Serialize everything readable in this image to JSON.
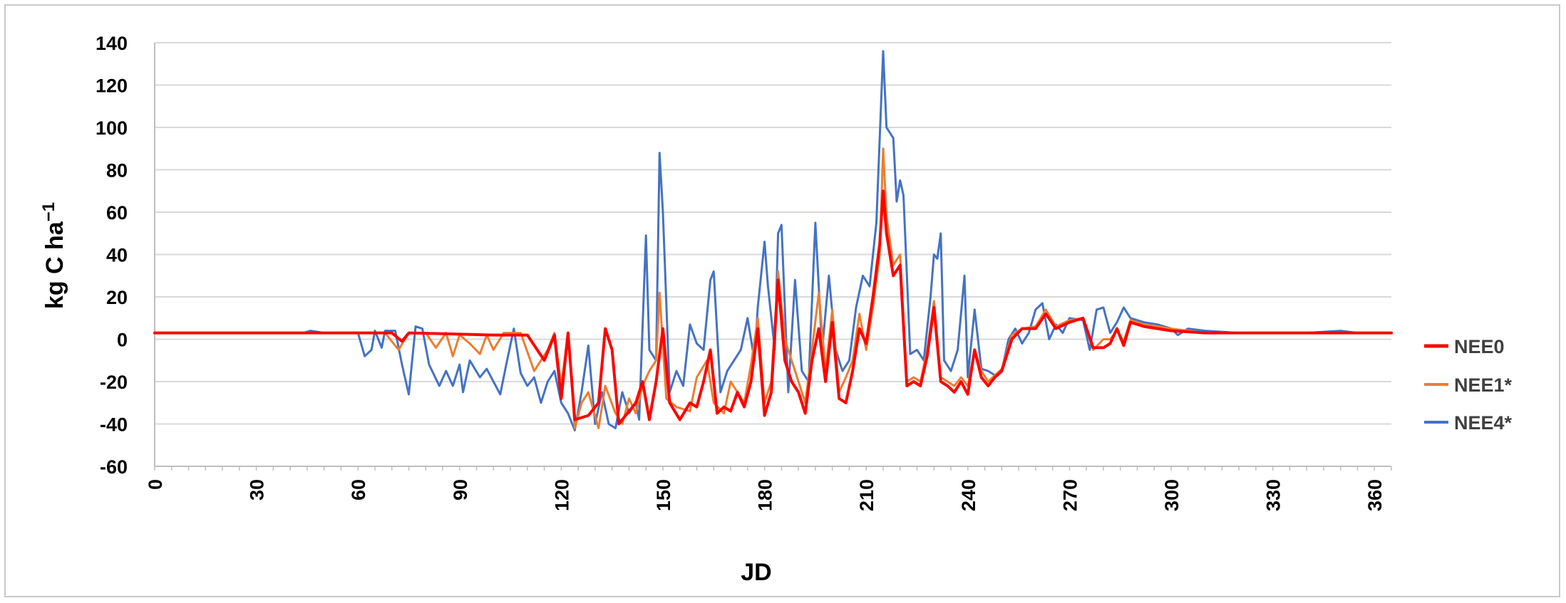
{
  "chart_data": {
    "type": "line",
    "title": "",
    "xlabel": "JD",
    "ylabel": "kg C ha",
    "ylabel_superscript": "−1",
    "xlim": [
      0,
      365
    ],
    "ylim": [
      -60,
      140
    ],
    "x_ticks": [
      0,
      30,
      60,
      90,
      120,
      150,
      180,
      210,
      240,
      270,
      300,
      330,
      360
    ],
    "y_ticks": [
      -60,
      -40,
      -20,
      0,
      20,
      40,
      60,
      80,
      100,
      120,
      140
    ],
    "grid": "horizontal",
    "legend_position": "right",
    "series": [
      {
        "name": "NEE0",
        "color": "#ff0000",
        "points": [
          [
            0,
            3
          ],
          [
            60,
            3
          ],
          [
            70,
            3
          ],
          [
            73,
            -1
          ],
          [
            75,
            3
          ],
          [
            100,
            2
          ],
          [
            110,
            2
          ],
          [
            115,
            -10
          ],
          [
            118,
            2
          ],
          [
            120,
            -28
          ],
          [
            122,
            3
          ],
          [
            124,
            -38
          ],
          [
            128,
            -36
          ],
          [
            131,
            -30
          ],
          [
            133,
            5
          ],
          [
            135,
            -5
          ],
          [
            137,
            -40
          ],
          [
            140,
            -34
          ],
          [
            142,
            -30
          ],
          [
            144,
            -20
          ],
          [
            146,
            -38
          ],
          [
            148,
            -20
          ],
          [
            150,
            5
          ],
          [
            152,
            -30
          ],
          [
            155,
            -38
          ],
          [
            158,
            -30
          ],
          [
            160,
            -32
          ],
          [
            162,
            -20
          ],
          [
            164,
            -5
          ],
          [
            166,
            -35
          ],
          [
            168,
            -32
          ],
          [
            170,
            -34
          ],
          [
            172,
            -25
          ],
          [
            174,
            -32
          ],
          [
            176,
            -20
          ],
          [
            178,
            5
          ],
          [
            180,
            -36
          ],
          [
            182,
            -25
          ],
          [
            184,
            28
          ],
          [
            186,
            -10
          ],
          [
            188,
            -20
          ],
          [
            190,
            -25
          ],
          [
            192,
            -35
          ],
          [
            194,
            -10
          ],
          [
            196,
            5
          ],
          [
            198,
            -20
          ],
          [
            200,
            8
          ],
          [
            202,
            -28
          ],
          [
            204,
            -30
          ],
          [
            206,
            -15
          ],
          [
            208,
            5
          ],
          [
            210,
            -2
          ],
          [
            212,
            20
          ],
          [
            214,
            45
          ],
          [
            215,
            70
          ],
          [
            216,
            50
          ],
          [
            218,
            30
          ],
          [
            220,
            35
          ],
          [
            222,
            -22
          ],
          [
            224,
            -20
          ],
          [
            226,
            -22
          ],
          [
            228,
            -8
          ],
          [
            230,
            15
          ],
          [
            232,
            -20
          ],
          [
            234,
            -22
          ],
          [
            236,
            -25
          ],
          [
            238,
            -20
          ],
          [
            240,
            -26
          ],
          [
            242,
            -5
          ],
          [
            244,
            -18
          ],
          [
            246,
            -22
          ],
          [
            248,
            -18
          ],
          [
            250,
            -15
          ],
          [
            253,
            0
          ],
          [
            256,
            5
          ],
          [
            260,
            5
          ],
          [
            263,
            12
          ],
          [
            266,
            5
          ],
          [
            270,
            8
          ],
          [
            274,
            10
          ],
          [
            277,
            -4
          ],
          [
            280,
            -4
          ],
          [
            282,
            -2
          ],
          [
            284,
            5
          ],
          [
            286,
            -3
          ],
          [
            288,
            8
          ],
          [
            292,
            6
          ],
          [
            300,
            4
          ],
          [
            310,
            3
          ],
          [
            330,
            3
          ],
          [
            340,
            3
          ],
          [
            350,
            3
          ],
          [
            365,
            3
          ]
        ]
      },
      {
        "name": "NEE1*",
        "color": "#ed7d31",
        "points": [
          [
            0,
            3
          ],
          [
            60,
            3
          ],
          [
            65,
            3
          ],
          [
            68,
            3
          ],
          [
            72,
            -5
          ],
          [
            75,
            3
          ],
          [
            80,
            3
          ],
          [
            83,
            -4
          ],
          [
            86,
            3
          ],
          [
            88,
            -8
          ],
          [
            90,
            2
          ],
          [
            93,
            -2
          ],
          [
            96,
            -7
          ],
          [
            98,
            2
          ],
          [
            100,
            -5
          ],
          [
            103,
            3
          ],
          [
            108,
            3
          ],
          [
            112,
            -15
          ],
          [
            116,
            -5
          ],
          [
            118,
            3
          ],
          [
            120,
            -22
          ],
          [
            122,
            3
          ],
          [
            124,
            -42
          ],
          [
            126,
            -30
          ],
          [
            128,
            -25
          ],
          [
            131,
            -42
          ],
          [
            133,
            -22
          ],
          [
            136,
            -35
          ],
          [
            138,
            -40
          ],
          [
            140,
            -28
          ],
          [
            142,
            -35
          ],
          [
            144,
            -22
          ],
          [
            146,
            -15
          ],
          [
            148,
            -10
          ],
          [
            149,
            22
          ],
          [
            151,
            -28
          ],
          [
            154,
            -32
          ],
          [
            158,
            -34
          ],
          [
            160,
            -18
          ],
          [
            163,
            -10
          ],
          [
            165,
            -30
          ],
          [
            168,
            -35
          ],
          [
            170,
            -20
          ],
          [
            174,
            -30
          ],
          [
            176,
            -12
          ],
          [
            178,
            10
          ],
          [
            180,
            -30
          ],
          [
            182,
            -20
          ],
          [
            184,
            32
          ],
          [
            186,
            0
          ],
          [
            188,
            -10
          ],
          [
            190,
            -20
          ],
          [
            192,
            -30
          ],
          [
            194,
            -5
          ],
          [
            196,
            22
          ],
          [
            198,
            -15
          ],
          [
            200,
            14
          ],
          [
            202,
            -25
          ],
          [
            204,
            -18
          ],
          [
            206,
            -10
          ],
          [
            208,
            12
          ],
          [
            210,
            -5
          ],
          [
            212,
            15
          ],
          [
            214,
            40
          ],
          [
            215,
            90
          ],
          [
            216,
            58
          ],
          [
            218,
            35
          ],
          [
            220,
            40
          ],
          [
            222,
            -20
          ],
          [
            224,
            -18
          ],
          [
            226,
            -20
          ],
          [
            228,
            -5
          ],
          [
            230,
            18
          ],
          [
            232,
            -18
          ],
          [
            234,
            -20
          ],
          [
            236,
            -22
          ],
          [
            238,
            -18
          ],
          [
            240,
            -22
          ],
          [
            242,
            -5
          ],
          [
            244,
            -15
          ],
          [
            246,
            -20
          ],
          [
            248,
            -17
          ],
          [
            250,
            -14
          ],
          [
            253,
            2
          ],
          [
            256,
            5
          ],
          [
            260,
            6
          ],
          [
            263,
            14
          ],
          [
            266,
            6
          ],
          [
            270,
            9
          ],
          [
            274,
            10
          ],
          [
            277,
            -5
          ],
          [
            280,
            0
          ],
          [
            282,
            0
          ],
          [
            284,
            4
          ],
          [
            286,
            -1
          ],
          [
            288,
            9
          ],
          [
            292,
            7
          ],
          [
            300,
            5
          ],
          [
            310,
            3
          ],
          [
            330,
            3
          ],
          [
            340,
            3
          ],
          [
            350,
            3
          ],
          [
            365,
            3
          ]
        ]
      },
      {
        "name": "NEE4*",
        "color": "#4472c4",
        "points": [
          [
            0,
            3
          ],
          [
            44,
            3
          ],
          [
            46,
            4
          ],
          [
            50,
            3
          ],
          [
            60,
            3
          ],
          [
            62,
            -8
          ],
          [
            64,
            -5
          ],
          [
            65,
            4
          ],
          [
            67,
            -4
          ],
          [
            68,
            4
          ],
          [
            71,
            4
          ],
          [
            73,
            -12
          ],
          [
            75,
            -26
          ],
          [
            77,
            6
          ],
          [
            79,
            5
          ],
          [
            81,
            -12
          ],
          [
            84,
            -22
          ],
          [
            86,
            -15
          ],
          [
            88,
            -22
          ],
          [
            90,
            -12
          ],
          [
            91,
            -25
          ],
          [
            93,
            -10
          ],
          [
            96,
            -18
          ],
          [
            98,
            -14
          ],
          [
            100,
            -20
          ],
          [
            102,
            -26
          ],
          [
            104,
            -10
          ],
          [
            106,
            5
          ],
          [
            108,
            -16
          ],
          [
            110,
            -22
          ],
          [
            112,
            -18
          ],
          [
            114,
            -30
          ],
          [
            116,
            -20
          ],
          [
            118,
            -15
          ],
          [
            120,
            -30
          ],
          [
            122,
            -35
          ],
          [
            124,
            -43
          ],
          [
            126,
            -25
          ],
          [
            128,
            -3
          ],
          [
            130,
            -40
          ],
          [
            132,
            -25
          ],
          [
            134,
            -40
          ],
          [
            136,
            -42
          ],
          [
            138,
            -25
          ],
          [
            140,
            -35
          ],
          [
            142,
            -30
          ],
          [
            143,
            -38
          ],
          [
            145,
            49
          ],
          [
            146,
            -5
          ],
          [
            148,
            -10
          ],
          [
            149,
            88
          ],
          [
            150,
            60
          ],
          [
            152,
            -25
          ],
          [
            154,
            -15
          ],
          [
            156,
            -22
          ],
          [
            158,
            7
          ],
          [
            160,
            -2
          ],
          [
            162,
            -5
          ],
          [
            164,
            28
          ],
          [
            165,
            32
          ],
          [
            167,
            -25
          ],
          [
            169,
            -15
          ],
          [
            171,
            -10
          ],
          [
            173,
            -5
          ],
          [
            175,
            10
          ],
          [
            177,
            -10
          ],
          [
            178,
            15
          ],
          [
            180,
            46
          ],
          [
            181,
            25
          ],
          [
            183,
            -5
          ],
          [
            184,
            50
          ],
          [
            185,
            54
          ],
          [
            187,
            -25
          ],
          [
            189,
            28
          ],
          [
            191,
            -15
          ],
          [
            193,
            -20
          ],
          [
            195,
            55
          ],
          [
            197,
            -5
          ],
          [
            199,
            30
          ],
          [
            201,
            -5
          ],
          [
            203,
            -15
          ],
          [
            205,
            -10
          ],
          [
            207,
            15
          ],
          [
            209,
            30
          ],
          [
            211,
            25
          ],
          [
            213,
            55
          ],
          [
            215,
            136
          ],
          [
            216,
            100
          ],
          [
            218,
            95
          ],
          [
            219,
            65
          ],
          [
            220,
            75
          ],
          [
            221,
            68
          ],
          [
            223,
            -7
          ],
          [
            225,
            -5
          ],
          [
            227,
            -10
          ],
          [
            229,
            20
          ],
          [
            230,
            40
          ],
          [
            231,
            38
          ],
          [
            232,
            50
          ],
          [
            233,
            -10
          ],
          [
            235,
            -15
          ],
          [
            237,
            -5
          ],
          [
            239,
            30
          ],
          [
            240,
            -18
          ],
          [
            242,
            14
          ],
          [
            244,
            -14
          ],
          [
            246,
            -15
          ],
          [
            248,
            -17
          ],
          [
            250,
            -15
          ],
          [
            252,
            0
          ],
          [
            254,
            5
          ],
          [
            256,
            -2
          ],
          [
            258,
            3
          ],
          [
            260,
            14
          ],
          [
            262,
            17
          ],
          [
            264,
            0
          ],
          [
            266,
            7
          ],
          [
            268,
            3
          ],
          [
            270,
            10
          ],
          [
            274,
            9
          ],
          [
            276,
            -5
          ],
          [
            278,
            14
          ],
          [
            280,
            15
          ],
          [
            282,
            3
          ],
          [
            284,
            8
          ],
          [
            286,
            15
          ],
          [
            288,
            10
          ],
          [
            292,
            8
          ],
          [
            296,
            7
          ],
          [
            300,
            5
          ],
          [
            302,
            2
          ],
          [
            305,
            5
          ],
          [
            310,
            4
          ],
          [
            320,
            3
          ],
          [
            330,
            3
          ],
          [
            340,
            3
          ],
          [
            350,
            4
          ],
          [
            355,
            3
          ],
          [
            365,
            3
          ]
        ]
      }
    ]
  }
}
